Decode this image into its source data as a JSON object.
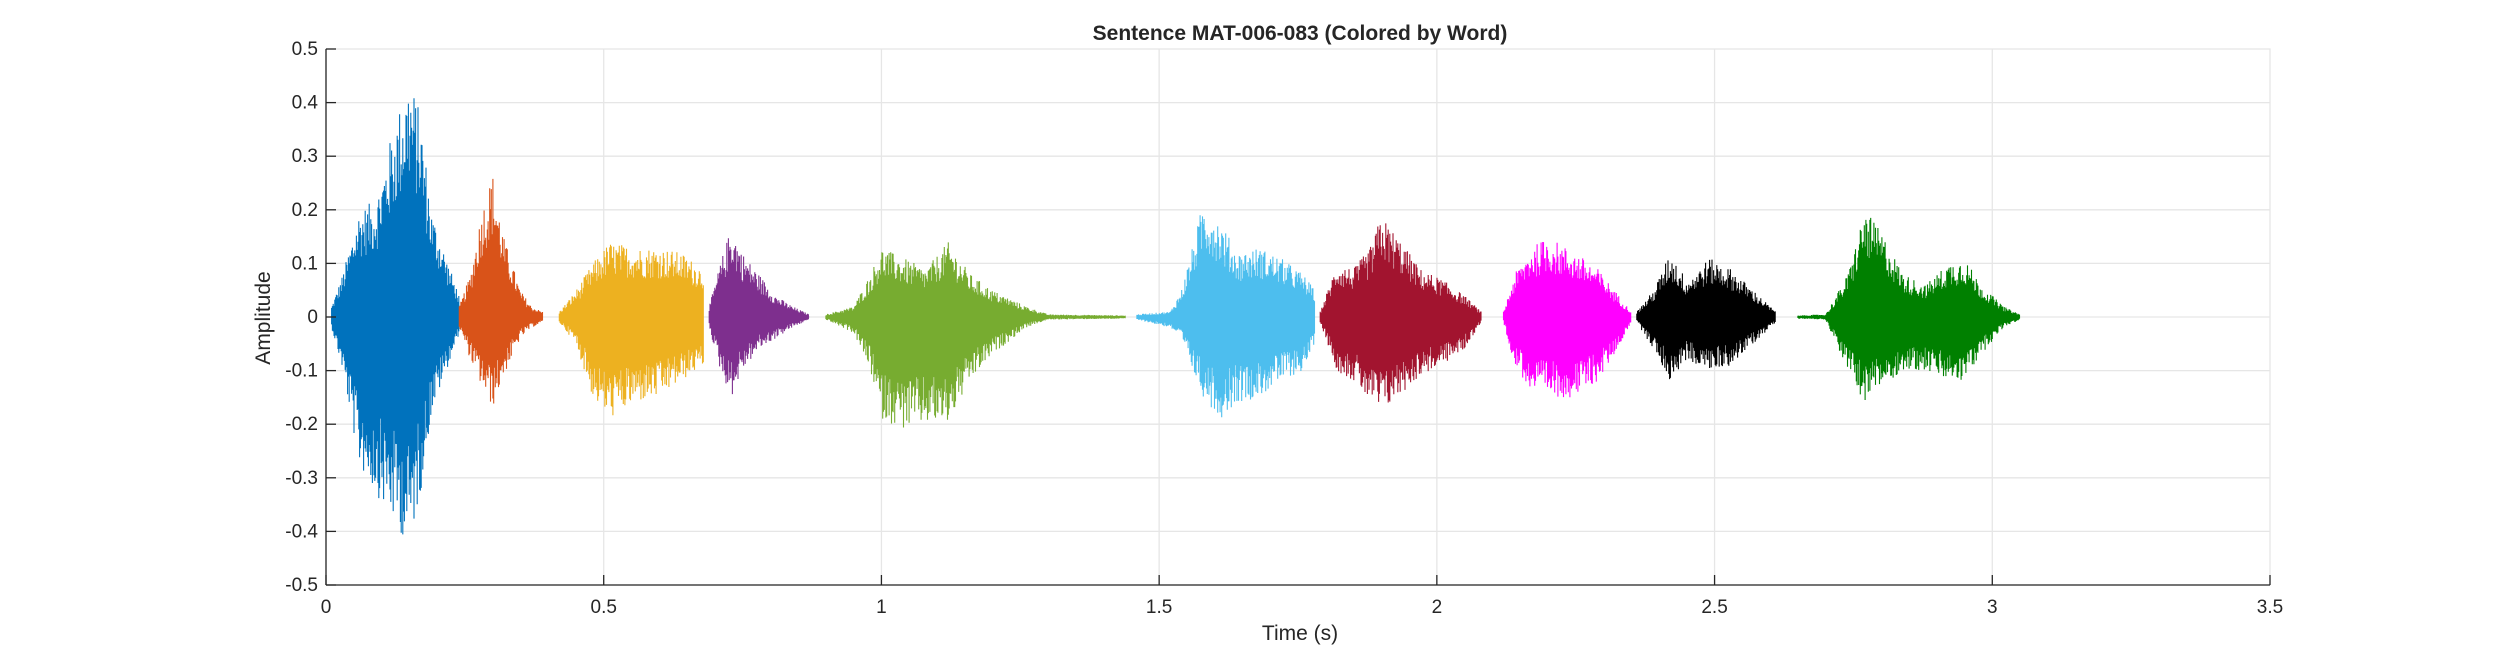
{
  "chart_data": {
    "type": "line",
    "title": "Sentence MAT-006-083 (Colored by Word)",
    "xlabel": "Time (s)",
    "ylabel": "Amplitude",
    "xlim": [
      0,
      3.5
    ],
    "ylim": [
      -0.5,
      0.5
    ],
    "grid": true,
    "x_ticks": [
      0,
      0.5,
      1,
      1.5,
      2,
      2.5,
      3,
      3.5
    ],
    "x_tick_labels": [
      "0",
      "0.5",
      "1",
      "1.5",
      "2",
      "2.5",
      "3",
      "3.5"
    ],
    "y_ticks": [
      -0.5,
      -0.4,
      -0.3,
      -0.2,
      -0.1,
      0,
      0.1,
      0.2,
      0.3,
      0.4,
      0.5
    ],
    "y_tick_labels": [
      "-0.5",
      "-0.4",
      "-0.3",
      "-0.2",
      "-0.1",
      "0",
      "0.1",
      "0.2",
      "0.3",
      "0.4",
      "0.5"
    ],
    "segments": [
      {
        "color": "#0072BD",
        "env": [
          [
            0.01,
            0.02
          ],
          [
            0.03,
            0.08
          ],
          [
            0.06,
            0.2
          ],
          [
            0.09,
            0.22
          ],
          [
            0.12,
            0.35
          ],
          [
            0.15,
            0.45
          ],
          [
            0.17,
            0.38
          ],
          [
            0.19,
            0.2
          ],
          [
            0.22,
            0.1
          ],
          [
            0.24,
            0.04
          ]
        ],
        "env_neg": [
          [
            0.01,
            -0.02
          ],
          [
            0.03,
            -0.1
          ],
          [
            0.06,
            -0.28
          ],
          [
            0.09,
            -0.33
          ],
          [
            0.12,
            -0.38
          ],
          [
            0.15,
            -0.43
          ],
          [
            0.17,
            -0.33
          ],
          [
            0.19,
            -0.18
          ],
          [
            0.22,
            -0.09
          ],
          [
            0.24,
            -0.03
          ]
        ]
      },
      {
        "color": "#D95319",
        "env": [
          [
            0.24,
            0.02
          ],
          [
            0.26,
            0.08
          ],
          [
            0.28,
            0.2
          ],
          [
            0.3,
            0.27
          ],
          [
            0.32,
            0.15
          ],
          [
            0.35,
            0.05
          ],
          [
            0.37,
            0.02
          ],
          [
            0.39,
            0.01
          ]
        ],
        "env_neg": [
          [
            0.24,
            -0.02
          ],
          [
            0.26,
            -0.08
          ],
          [
            0.28,
            -0.13
          ],
          [
            0.3,
            -0.17
          ],
          [
            0.32,
            -0.11
          ],
          [
            0.35,
            -0.04
          ],
          [
            0.37,
            -0.02
          ],
          [
            0.39,
            -0.01
          ]
        ]
      },
      {
        "color": "#EDB120",
        "env": [
          [
            0.42,
            0.01
          ],
          [
            0.45,
            0.05
          ],
          [
            0.48,
            0.1
          ],
          [
            0.51,
            0.14
          ],
          [
            0.56,
            0.13
          ],
          [
            0.6,
            0.13
          ],
          [
            0.64,
            0.12
          ],
          [
            0.68,
            0.09
          ]
        ],
        "env_neg": [
          [
            0.42,
            -0.01
          ],
          [
            0.45,
            -0.05
          ],
          [
            0.48,
            -0.15
          ],
          [
            0.51,
            -0.19
          ],
          [
            0.56,
            -0.16
          ],
          [
            0.6,
            -0.15
          ],
          [
            0.64,
            -0.12
          ],
          [
            0.68,
            -0.09
          ]
        ]
      },
      {
        "color": "#7E2F8E",
        "env": [
          [
            0.69,
            0.02
          ],
          [
            0.71,
            0.1
          ],
          [
            0.73,
            0.17
          ],
          [
            0.75,
            0.12
          ],
          [
            0.78,
            0.08
          ],
          [
            0.81,
            0.04
          ],
          [
            0.84,
            0.02
          ],
          [
            0.87,
            0.005
          ]
        ],
        "env_neg": [
          [
            0.69,
            -0.02
          ],
          [
            0.71,
            -0.1
          ],
          [
            0.73,
            -0.15
          ],
          [
            0.75,
            -0.1
          ],
          [
            0.78,
            -0.06
          ],
          [
            0.81,
            -0.04
          ],
          [
            0.84,
            -0.02
          ],
          [
            0.87,
            -0.005
          ]
        ]
      },
      {
        "color": "#77AC30",
        "env": [
          [
            0.9,
            0.005
          ],
          [
            0.95,
            0.02
          ],
          [
            0.98,
            0.08
          ],
          [
            1.0,
            0.13
          ],
          [
            1.04,
            0.11
          ],
          [
            1.08,
            0.09
          ],
          [
            1.12,
            0.14
          ],
          [
            1.16,
            0.08
          ],
          [
            1.2,
            0.05
          ],
          [
            1.26,
            0.02
          ],
          [
            1.3,
            0.005
          ],
          [
            1.44,
            0.003
          ]
        ],
        "env_neg": [
          [
            0.9,
            -0.005
          ],
          [
            0.95,
            -0.03
          ],
          [
            0.98,
            -0.1
          ],
          [
            1.0,
            -0.19
          ],
          [
            1.04,
            -0.21
          ],
          [
            1.08,
            -0.2
          ],
          [
            1.12,
            -0.2
          ],
          [
            1.16,
            -0.12
          ],
          [
            1.2,
            -0.07
          ],
          [
            1.26,
            -0.02
          ],
          [
            1.3,
            -0.005
          ],
          [
            1.44,
            -0.003
          ]
        ]
      },
      {
        "color": "#4DBEEE",
        "env": [
          [
            1.46,
            0.005
          ],
          [
            1.52,
            0.01
          ],
          [
            1.54,
            0.05
          ],
          [
            1.56,
            0.13
          ],
          [
            1.58,
            0.22
          ],
          [
            1.61,
            0.18
          ],
          [
            1.64,
            0.12
          ],
          [
            1.68,
            0.13
          ],
          [
            1.72,
            0.11
          ],
          [
            1.76,
            0.08
          ],
          [
            1.78,
            0.05
          ]
        ],
        "env_neg": [
          [
            1.46,
            -0.005
          ],
          [
            1.52,
            -0.02
          ],
          [
            1.54,
            -0.04
          ],
          [
            1.56,
            -0.1
          ],
          [
            1.58,
            -0.15
          ],
          [
            1.61,
            -0.19
          ],
          [
            1.64,
            -0.16
          ],
          [
            1.68,
            -0.15
          ],
          [
            1.72,
            -0.12
          ],
          [
            1.76,
            -0.1
          ],
          [
            1.78,
            -0.05
          ]
        ]
      },
      {
        "color": "#A2142F",
        "env": [
          [
            1.79,
            0.01
          ],
          [
            1.82,
            0.1
          ],
          [
            1.85,
            0.09
          ],
          [
            1.88,
            0.13
          ],
          [
            1.9,
            0.19
          ],
          [
            1.93,
            0.15
          ],
          [
            1.97,
            0.09
          ],
          [
            2.01,
            0.07
          ],
          [
            2.05,
            0.04
          ],
          [
            2.08,
            0.01
          ]
        ],
        "env_neg": [
          [
            1.79,
            -0.01
          ],
          [
            1.82,
            -0.1
          ],
          [
            1.85,
            -0.12
          ],
          [
            1.88,
            -0.16
          ],
          [
            1.9,
            -0.18
          ],
          [
            1.93,
            -0.15
          ],
          [
            1.97,
            -0.11
          ],
          [
            2.01,
            -0.09
          ],
          [
            2.05,
            -0.06
          ],
          [
            2.08,
            -0.01
          ]
        ]
      },
      {
        "color": "#FF00FF",
        "env": [
          [
            2.12,
            0.01
          ],
          [
            2.14,
            0.08
          ],
          [
            2.17,
            0.13
          ],
          [
            2.2,
            0.15
          ],
          [
            2.25,
            0.12
          ],
          [
            2.29,
            0.09
          ],
          [
            2.32,
            0.05
          ],
          [
            2.35,
            0.01
          ]
        ],
        "env_neg": [
          [
            2.12,
            -0.01
          ],
          [
            2.14,
            -0.09
          ],
          [
            2.17,
            -0.14
          ],
          [
            2.2,
            -0.15
          ],
          [
            2.25,
            -0.15
          ],
          [
            2.29,
            -0.12
          ],
          [
            2.32,
            -0.07
          ],
          [
            2.35,
            -0.01
          ]
        ]
      },
      {
        "color": "#000000",
        "env": [
          [
            2.36,
            0.01
          ],
          [
            2.39,
            0.05
          ],
          [
            2.42,
            0.12
          ],
          [
            2.45,
            0.07
          ],
          [
            2.49,
            0.11
          ],
          [
            2.53,
            0.09
          ],
          [
            2.57,
            0.05
          ],
          [
            2.61,
            0.01
          ]
        ],
        "env_neg": [
          [
            2.36,
            -0.01
          ],
          [
            2.39,
            -0.06
          ],
          [
            2.42,
            -0.12
          ],
          [
            2.45,
            -0.08
          ],
          [
            2.49,
            -0.1
          ],
          [
            2.53,
            -0.09
          ],
          [
            2.57,
            -0.05
          ],
          [
            2.61,
            -0.01
          ]
        ]
      },
      {
        "color": "#008000",
        "env": [
          [
            2.65,
            0.003
          ],
          [
            2.7,
            0.005
          ],
          [
            2.74,
            0.08
          ],
          [
            2.77,
            0.2
          ],
          [
            2.8,
            0.16
          ],
          [
            2.84,
            0.08
          ],
          [
            2.88,
            0.06
          ],
          [
            2.92,
            0.1
          ],
          [
            2.95,
            0.11
          ],
          [
            2.98,
            0.06
          ],
          [
            3.02,
            0.02
          ],
          [
            3.05,
            0.005
          ]
        ],
        "env_neg": [
          [
            2.65,
            -0.003
          ],
          [
            2.7,
            -0.005
          ],
          [
            2.74,
            -0.1
          ],
          [
            2.77,
            -0.16
          ],
          [
            2.8,
            -0.13
          ],
          [
            2.84,
            -0.1
          ],
          [
            2.88,
            -0.1
          ],
          [
            2.92,
            -0.12
          ],
          [
            2.95,
            -0.12
          ],
          [
            2.98,
            -0.07
          ],
          [
            3.02,
            -0.02
          ],
          [
            3.05,
            -0.005
          ]
        ]
      }
    ]
  }
}
